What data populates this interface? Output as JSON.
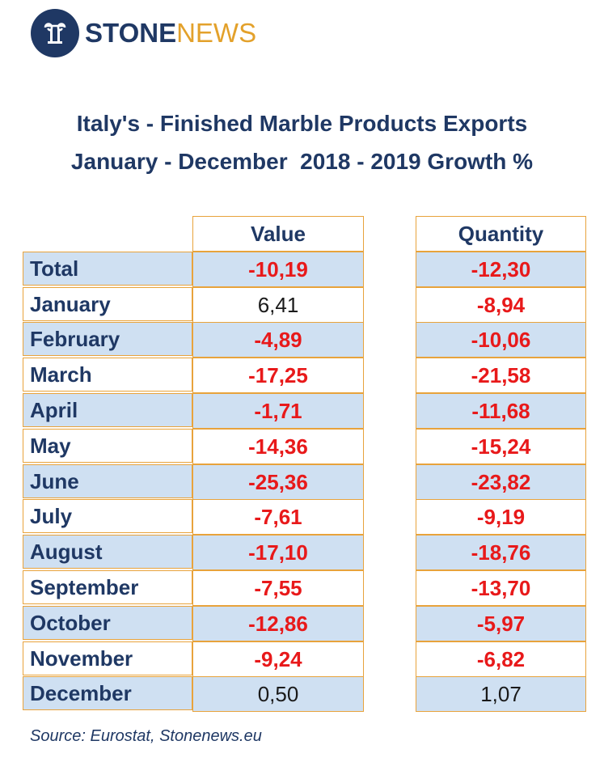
{
  "brand": {
    "stone": "STONE",
    "news": "NEWS",
    "colors": {
      "navy": "#1f3864",
      "gold": "#e3a12b"
    }
  },
  "title": {
    "line1": "Italy's - Finished Marble Products Exports",
    "line2": "January - December  2018 - 2019 Growth %"
  },
  "table": {
    "headers": {
      "value": "Value",
      "quantity": "Quantity"
    },
    "rows": [
      {
        "label": "Total",
        "value": "-10,19",
        "quantity": "-12,30"
      },
      {
        "label": "January",
        "value": "6,41",
        "quantity": "-8,94"
      },
      {
        "label": "February",
        "value": "-4,89",
        "quantity": "-10,06"
      },
      {
        "label": "March",
        "value": "-17,25",
        "quantity": "-21,58"
      },
      {
        "label": "April",
        "value": "-1,71",
        "quantity": "-11,68"
      },
      {
        "label": "May",
        "value": "-14,36",
        "quantity": "-15,24"
      },
      {
        "label": "June",
        "value": "-25,36",
        "quantity": "-23,82"
      },
      {
        "label": "July",
        "value": "-7,61",
        "quantity": "-9,19"
      },
      {
        "label": "August",
        "value": "-17,10",
        "quantity": "-18,76"
      },
      {
        "label": "September",
        "value": "-7,55",
        "quantity": "-13,70"
      },
      {
        "label": "October",
        "value": "-12,86",
        "quantity": "-5,97"
      },
      {
        "label": "November",
        "value": "-9,24",
        "quantity": "-6,82"
      },
      {
        "label": "December",
        "value": "0,50",
        "quantity": "1,07"
      }
    ]
  },
  "source": "Source: Eurostat, Stonenews.eu",
  "colors": {
    "negative": "#e8191a",
    "row_band": "#cfe0f2",
    "border": "#e8a33c"
  }
}
